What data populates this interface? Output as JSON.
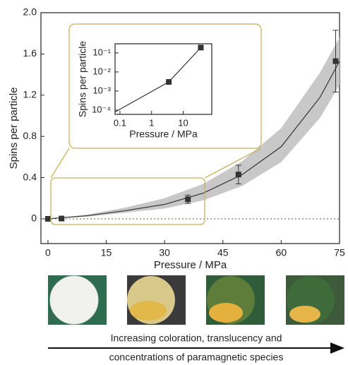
{
  "chart_data": [
    {
      "type": "scatter",
      "xlabel": "Pressure / MPa",
      "ylabel": "Spins per particle",
      "x": [
        0,
        3.5,
        36,
        49,
        74
      ],
      "values": [
        0,
        0.003,
        0.19,
        0.43,
        1.53
      ],
      "errors": [
        0.01,
        0.01,
        0.04,
        0.09,
        0.3
      ],
      "color": "#333333",
      "fit": {
        "x": [
          0,
          10,
          20,
          30,
          40,
          50,
          60,
          70,
          75
        ],
        "values": [
          0,
          0.03,
          0.08,
          0.14,
          0.25,
          0.43,
          0.7,
          1.18,
          1.53
        ]
      },
      "band": {
        "x": [
          0,
          10,
          20,
          30,
          40,
          50,
          60,
          70,
          75
        ],
        "lower": [
          0,
          0.02,
          0.06,
          0.1,
          0.18,
          0.32,
          0.55,
          0.98,
          1.3
        ],
        "upper": [
          0,
          0.04,
          0.11,
          0.2,
          0.34,
          0.56,
          0.88,
          1.42,
          1.76
        ],
        "color": "#c8c8c8"
      },
      "xlim": [
        -1.8,
        75
      ],
      "ylim": [
        -0.24,
        2.0
      ],
      "xticks": [
        0,
        15,
        30,
        45,
        60,
        75
      ],
      "yticks": [
        0,
        0.4,
        0.8,
        1.2,
        1.6,
        {
          "value": 2,
          "label": "2.0"
        }
      ],
      "annotations": [
        "Increasing coloration, translucency and",
        "concentrations of paramagnetic species"
      ]
    },
    {
      "type": "scatter",
      "log": true,
      "xlabel": "Pressure / MPa",
      "ylabel": "Spins per particle",
      "x": [
        3.5,
        36
      ],
      "values": [
        0.003,
        0.19
      ],
      "color": "#333333",
      "line": {
        "x": [
          0.07,
          3.5,
          36
        ],
        "values": [
          8e-05,
          0.003,
          0.19
        ]
      },
      "xlim": [
        0.07,
        80
      ],
      "ylim": [
        6e-05,
        0.3
      ],
      "xticks": [
        0.1,
        1,
        10
      ],
      "yticks": [
        {
          "value": 0.0001,
          "label": "10⁻⁴"
        },
        {
          "value": 0.001,
          "label": "10⁻³"
        },
        {
          "value": 0.01,
          "label": "10⁻²"
        },
        {
          "value": 0.1,
          "label": "10⁻¹"
        }
      ]
    }
  ]
}
